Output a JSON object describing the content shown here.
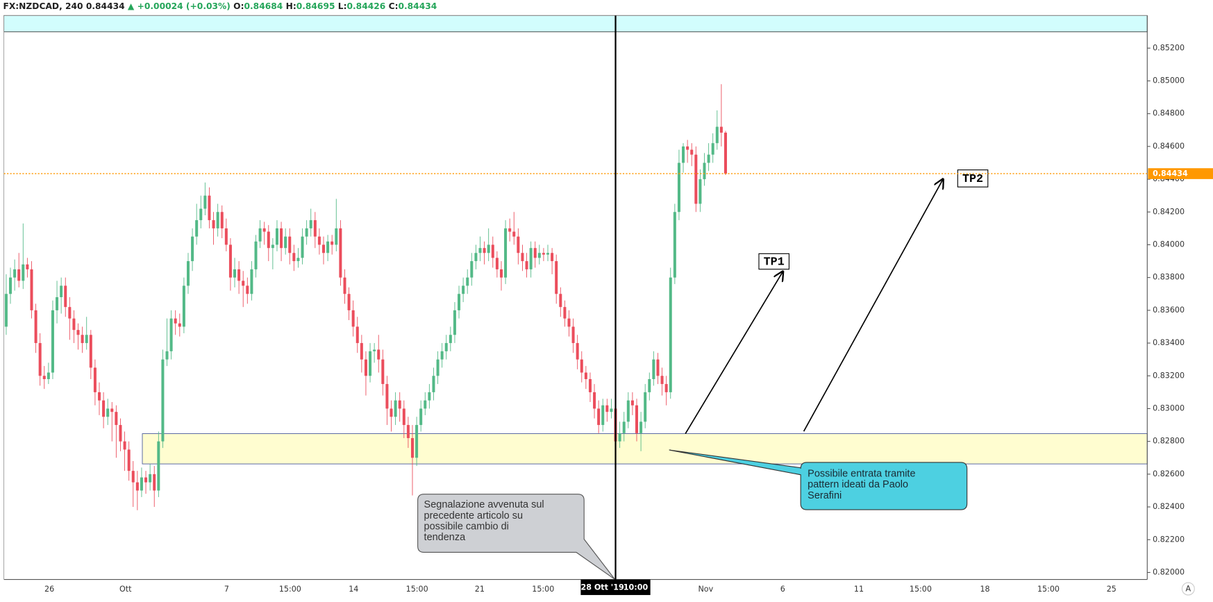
{
  "chart_data": {
    "type": "candlestick",
    "header": {
      "symbol": "FX:NZDCAD, 240",
      "change": "▲ +0.00024 (+0.03%)",
      "ohlc_labels": [
        "O:",
        "H:",
        "L:",
        "C:"
      ]
    },
    "up_color": "#53b987",
    "down_color": "#eb4d5c",
    "price_line_color": "#ff9800",
    "xlim": [
      -0.55,
      269.65
    ],
    "xticks": [
      {
        "value": 10.2,
        "label": "26"
      },
      {
        "value": 28.2,
        "label": "Ott"
      },
      {
        "value": 52.1,
        "label": "7"
      },
      {
        "value": 67.1,
        "label": "15:00"
      },
      {
        "value": 82.1,
        "label": "14"
      },
      {
        "value": 97.1,
        "label": "15:00"
      },
      {
        "value": 111.9,
        "label": "21"
      },
      {
        "value": 126.9,
        "label": "15:00"
      },
      {
        "value": 165.3,
        "label": "Nov"
      },
      {
        "value": 183.5,
        "label": "6"
      },
      {
        "value": 201.5,
        "label": "11"
      },
      {
        "value": 216.1,
        "label": "15:00"
      },
      {
        "value": 231.3,
        "label": "18"
      },
      {
        "value": 246.3,
        "label": "15:00"
      },
      {
        "value": 261.2,
        "label": "25"
      }
    ],
    "ylim": [
      0.81957,
      0.85399
    ],
    "yticks": [
      {
        "value": 0.82,
        "label": "0.82000"
      },
      {
        "value": 0.822,
        "label": "0.82200"
      },
      {
        "value": 0.824,
        "label": "0.82400"
      },
      {
        "value": 0.826,
        "label": "0.82600"
      },
      {
        "value": 0.828,
        "label": "0.82800"
      },
      {
        "value": 0.83,
        "label": "0.83000"
      },
      {
        "value": 0.832,
        "label": "0.83200"
      },
      {
        "value": 0.834,
        "label": "0.83400"
      },
      {
        "value": 0.836,
        "label": "0.83600"
      },
      {
        "value": 0.838,
        "label": "0.83800"
      },
      {
        "value": 0.84,
        "label": "0.84000"
      },
      {
        "value": 0.842,
        "label": "0.84200"
      },
      {
        "value": 0.844,
        "label": "0.84400"
      },
      {
        "value": 0.846,
        "label": "0.84600"
      },
      {
        "value": 0.848,
        "label": "0.84800"
      },
      {
        "value": 0.85,
        "label": "0.85000"
      },
      {
        "value": 0.852,
        "label": "0.85200"
      }
    ],
    "crosshair": {
      "index": 144,
      "date": "28 Ott '19",
      "time": "10:00"
    },
    "annotations": {
      "tp1": "TP1",
      "tp2": "TP2",
      "note_left": [
        "Segnalazione avvenuta sul",
        "precedente articolo su",
        "possibile cambio di",
        "tendenza"
      ],
      "note_right": [
        "Possibile entrata tramite",
        "pattern ideati da Paolo",
        "Serafini"
      ]
    },
    "ohlc": [
      [
        0.835,
        0.8382,
        0.8345,
        0.837
      ],
      [
        0.837,
        0.8386,
        0.8364,
        0.838
      ],
      [
        0.838,
        0.8391,
        0.8372,
        0.8385
      ],
      [
        0.8385,
        0.8395,
        0.8374,
        0.8378
      ],
      [
        0.8378,
        0.8413,
        0.8373,
        0.8388
      ],
      [
        0.8388,
        0.8392,
        0.838,
        0.8385
      ],
      [
        0.8385,
        0.839,
        0.8355,
        0.836
      ],
      [
        0.836,
        0.8364,
        0.8334,
        0.834
      ],
      [
        0.834,
        0.8346,
        0.8314,
        0.832
      ],
      [
        0.832,
        0.8326,
        0.8312,
        0.8318
      ],
      [
        0.8318,
        0.8328,
        0.8315,
        0.8322
      ],
      [
        0.8322,
        0.8366,
        0.8318,
        0.836
      ],
      [
        0.836,
        0.8378,
        0.8352,
        0.8368
      ],
      [
        0.8368,
        0.838,
        0.8358,
        0.8375
      ],
      [
        0.8375,
        0.838,
        0.8356,
        0.8362
      ],
      [
        0.8362,
        0.8368,
        0.8342,
        0.8355
      ],
      [
        0.8355,
        0.836,
        0.834,
        0.8348
      ],
      [
        0.8348,
        0.8352,
        0.8336,
        0.8345
      ],
      [
        0.8345,
        0.835,
        0.8334,
        0.834
      ],
      [
        0.834,
        0.8356,
        0.8336,
        0.8345
      ],
      [
        0.8345,
        0.8348,
        0.8318,
        0.8325
      ],
      [
        0.8325,
        0.833,
        0.8302,
        0.831
      ],
      [
        0.831,
        0.8316,
        0.8296,
        0.8305
      ],
      [
        0.8305,
        0.831,
        0.8288,
        0.8295
      ],
      [
        0.8295,
        0.8306,
        0.829,
        0.83
      ],
      [
        0.83,
        0.8304,
        0.828,
        0.8298
      ],
      [
        0.8298,
        0.8302,
        0.827,
        0.829
      ],
      [
        0.829,
        0.8294,
        0.8274,
        0.828
      ],
      [
        0.828,
        0.8286,
        0.8262,
        0.8275
      ],
      [
        0.8275,
        0.828,
        0.8256,
        0.8262
      ],
      [
        0.8262,
        0.8268,
        0.824,
        0.8255
      ],
      [
        0.8255,
        0.8262,
        0.8238,
        0.825
      ],
      [
        0.825,
        0.8264,
        0.8246,
        0.8258
      ],
      [
        0.8258,
        0.8262,
        0.8248,
        0.8255
      ],
      [
        0.8255,
        0.8266,
        0.825,
        0.826
      ],
      [
        0.826,
        0.8265,
        0.824,
        0.825
      ],
      [
        0.825,
        0.8286,
        0.8246,
        0.828
      ],
      [
        0.828,
        0.8336,
        0.8276,
        0.833
      ],
      [
        0.833,
        0.8355,
        0.8326,
        0.8335
      ],
      [
        0.8335,
        0.836,
        0.833,
        0.8355
      ],
      [
        0.8355,
        0.836,
        0.8345,
        0.8352
      ],
      [
        0.8352,
        0.8358,
        0.8344,
        0.835
      ],
      [
        0.835,
        0.838,
        0.8346,
        0.8375
      ],
      [
        0.8375,
        0.8395,
        0.837,
        0.839
      ],
      [
        0.839,
        0.841,
        0.8384,
        0.8405
      ],
      [
        0.8405,
        0.8425,
        0.84,
        0.8415
      ],
      [
        0.8415,
        0.843,
        0.841,
        0.8422
      ],
      [
        0.8422,
        0.8438,
        0.8418,
        0.843
      ],
      [
        0.843,
        0.8435,
        0.841,
        0.8415
      ],
      [
        0.8415,
        0.842,
        0.84,
        0.841
      ],
      [
        0.841,
        0.8425,
        0.8405,
        0.842
      ],
      [
        0.842,
        0.8424,
        0.8404,
        0.841
      ],
      [
        0.841,
        0.8416,
        0.8396,
        0.84
      ],
      [
        0.84,
        0.8404,
        0.8372,
        0.838
      ],
      [
        0.838,
        0.8392,
        0.8374,
        0.8385
      ],
      [
        0.8385,
        0.839,
        0.837,
        0.8378
      ],
      [
        0.8378,
        0.8384,
        0.8362,
        0.8375
      ],
      [
        0.8375,
        0.838,
        0.8364,
        0.837
      ],
      [
        0.837,
        0.839,
        0.8366,
        0.8385
      ],
      [
        0.8385,
        0.8406,
        0.838,
        0.8402
      ],
      [
        0.8402,
        0.8415,
        0.8398,
        0.841
      ],
      [
        0.841,
        0.8414,
        0.84,
        0.8408
      ],
      [
        0.8408,
        0.8412,
        0.839,
        0.8398
      ],
      [
        0.8398,
        0.8404,
        0.8385,
        0.84
      ],
      [
        0.84,
        0.8415,
        0.8396,
        0.841
      ],
      [
        0.841,
        0.8414,
        0.839,
        0.8398
      ],
      [
        0.8398,
        0.841,
        0.8394,
        0.8405
      ],
      [
        0.8405,
        0.841,
        0.8388,
        0.8395
      ],
      [
        0.8395,
        0.84,
        0.8384,
        0.839
      ],
      [
        0.839,
        0.8398,
        0.8386,
        0.8392
      ],
      [
        0.8392,
        0.841,
        0.8388,
        0.8405
      ],
      [
        0.8405,
        0.8415,
        0.84,
        0.841
      ],
      [
        0.841,
        0.8422,
        0.8405,
        0.8415
      ],
      [
        0.8415,
        0.842,
        0.8398,
        0.8405
      ],
      [
        0.8405,
        0.841,
        0.8394,
        0.84
      ],
      [
        0.84,
        0.8405,
        0.8388,
        0.8395
      ],
      [
        0.8395,
        0.8406,
        0.839,
        0.8402
      ],
      [
        0.8402,
        0.8406,
        0.8394,
        0.84
      ],
      [
        0.84,
        0.8428,
        0.8396,
        0.841
      ],
      [
        0.841,
        0.8415,
        0.8375,
        0.838
      ],
      [
        0.838,
        0.8385,
        0.8364,
        0.837
      ],
      [
        0.837,
        0.8374,
        0.8354,
        0.836
      ],
      [
        0.836,
        0.8366,
        0.8344,
        0.835
      ],
      [
        0.835,
        0.8356,
        0.8334,
        0.834
      ],
      [
        0.834,
        0.8345,
        0.8322,
        0.833
      ],
      [
        0.833,
        0.8335,
        0.8308,
        0.832
      ],
      [
        0.832,
        0.834,
        0.8316,
        0.8335
      ],
      [
        0.8335,
        0.834,
        0.8328,
        0.8336
      ],
      [
        0.8336,
        0.8345,
        0.8322,
        0.833
      ],
      [
        0.833,
        0.8336,
        0.8308,
        0.8315
      ],
      [
        0.8315,
        0.832,
        0.829,
        0.83
      ],
      [
        0.83,
        0.8305,
        0.8286,
        0.8295
      ],
      [
        0.8295,
        0.831,
        0.829,
        0.8305
      ],
      [
        0.8305,
        0.831,
        0.8292,
        0.83
      ],
      [
        0.83,
        0.8305,
        0.8282,
        0.829
      ],
      [
        0.829,
        0.8295,
        0.8276,
        0.8282
      ],
      [
        0.8282,
        0.829,
        0.8247,
        0.827
      ],
      [
        0.827,
        0.8295,
        0.8265,
        0.829
      ],
      [
        0.829,
        0.8305,
        0.8286,
        0.83
      ],
      [
        0.83,
        0.831,
        0.8296,
        0.8305
      ],
      [
        0.8305,
        0.8315,
        0.83,
        0.831
      ],
      [
        0.831,
        0.8325,
        0.8305,
        0.832
      ],
      [
        0.832,
        0.8335,
        0.8315,
        0.833
      ],
      [
        0.833,
        0.834,
        0.8325,
        0.8335
      ],
      [
        0.8335,
        0.8345,
        0.833,
        0.834
      ],
      [
        0.834,
        0.835,
        0.8335,
        0.8345
      ],
      [
        0.8345,
        0.8365,
        0.834,
        0.836
      ],
      [
        0.836,
        0.8375,
        0.8355,
        0.837
      ],
      [
        0.837,
        0.838,
        0.8365,
        0.8375
      ],
      [
        0.8375,
        0.8385,
        0.837,
        0.838
      ],
      [
        0.838,
        0.8395,
        0.8375,
        0.839
      ],
      [
        0.839,
        0.84,
        0.8385,
        0.8395
      ],
      [
        0.8395,
        0.8405,
        0.839,
        0.8398
      ],
      [
        0.8398,
        0.8402,
        0.8388,
        0.8395
      ],
      [
        0.8395,
        0.841,
        0.839,
        0.84
      ],
      [
        0.84,
        0.8405,
        0.8386,
        0.8392
      ],
      [
        0.8392,
        0.8396,
        0.838,
        0.8385
      ],
      [
        0.8385,
        0.839,
        0.8372,
        0.838
      ],
      [
        0.838,
        0.8415,
        0.8376,
        0.841
      ],
      [
        0.841,
        0.8416,
        0.8402,
        0.8408
      ],
      [
        0.8408,
        0.842,
        0.84,
        0.8405
      ],
      [
        0.8405,
        0.841,
        0.8388,
        0.8395
      ],
      [
        0.8395,
        0.84,
        0.8384,
        0.839
      ],
      [
        0.839,
        0.8395,
        0.838,
        0.8385
      ],
      [
        0.8385,
        0.8402,
        0.838,
        0.8398
      ],
      [
        0.8398,
        0.8402,
        0.8386,
        0.8392
      ],
      [
        0.8392,
        0.84,
        0.8388,
        0.8395
      ],
      [
        0.8395,
        0.8398,
        0.839,
        0.8394
      ],
      [
        0.8394,
        0.84,
        0.839,
        0.8395
      ],
      [
        0.8395,
        0.8398,
        0.8382,
        0.839
      ],
      [
        0.839,
        0.8394,
        0.8364,
        0.837
      ],
      [
        0.837,
        0.8374,
        0.8356,
        0.8362
      ],
      [
        0.8362,
        0.8366,
        0.835,
        0.8355
      ],
      [
        0.8355,
        0.836,
        0.8344,
        0.835
      ],
      [
        0.835,
        0.8355,
        0.8334,
        0.834
      ],
      [
        0.834,
        0.8345,
        0.8324,
        0.833
      ],
      [
        0.833,
        0.8335,
        0.8316,
        0.8322
      ],
      [
        0.8322,
        0.8326,
        0.8312,
        0.8318
      ],
      [
        0.8318,
        0.8322,
        0.8304,
        0.831
      ],
      [
        0.831,
        0.8315,
        0.8294,
        0.83
      ],
      [
        0.83,
        0.8305,
        0.8285,
        0.829
      ],
      [
        0.829,
        0.8306,
        0.8286,
        0.8302
      ],
      [
        0.8302,
        0.8306,
        0.8292,
        0.8298
      ],
      [
        0.8298,
        0.8306,
        0.8294,
        0.83
      ],
      [
        0.83,
        0.8304,
        0.8274,
        0.828
      ],
      [
        0.828,
        0.8292,
        0.8276,
        0.8285
      ],
      [
        0.8285,
        0.8298,
        0.828,
        0.8292
      ],
      [
        0.8292,
        0.831,
        0.8288,
        0.8305
      ],
      [
        0.8305,
        0.831,
        0.8296,
        0.8302
      ],
      [
        0.8302,
        0.8306,
        0.828,
        0.8285
      ],
      [
        0.8285,
        0.8298,
        0.8274,
        0.8292
      ],
      [
        0.8292,
        0.8315,
        0.8288,
        0.831
      ],
      [
        0.831,
        0.8322,
        0.8305,
        0.8318
      ],
      [
        0.8318,
        0.8335,
        0.8314,
        0.833
      ],
      [
        0.833,
        0.8334,
        0.8315,
        0.832
      ],
      [
        0.832,
        0.8325,
        0.8308,
        0.8315
      ],
      [
        0.8315,
        0.832,
        0.8302,
        0.831
      ],
      [
        0.831,
        0.8386,
        0.8306,
        0.838
      ],
      [
        0.838,
        0.8425,
        0.8376,
        0.842
      ],
      [
        0.842,
        0.8458,
        0.8415,
        0.845
      ],
      [
        0.845,
        0.8462,
        0.8444,
        0.846
      ],
      [
        0.846,
        0.8464,
        0.845,
        0.8458
      ],
      [
        0.8458,
        0.8462,
        0.8448,
        0.8455
      ],
      [
        0.8455,
        0.846,
        0.842,
        0.8425
      ],
      [
        0.8425,
        0.8446,
        0.842,
        0.844
      ],
      [
        0.844,
        0.8456,
        0.8436,
        0.845
      ],
      [
        0.845,
        0.8462,
        0.8445,
        0.8455
      ],
      [
        0.8455,
        0.8468,
        0.845,
        0.8462
      ],
      [
        0.8462,
        0.8482,
        0.8458,
        0.8472
      ],
      [
        0.8472,
        0.8498,
        0.846,
        0.84684
      ],
      [
        0.84684,
        0.84695,
        0.84426,
        0.84434
      ]
    ]
  },
  "auto_button": "A"
}
